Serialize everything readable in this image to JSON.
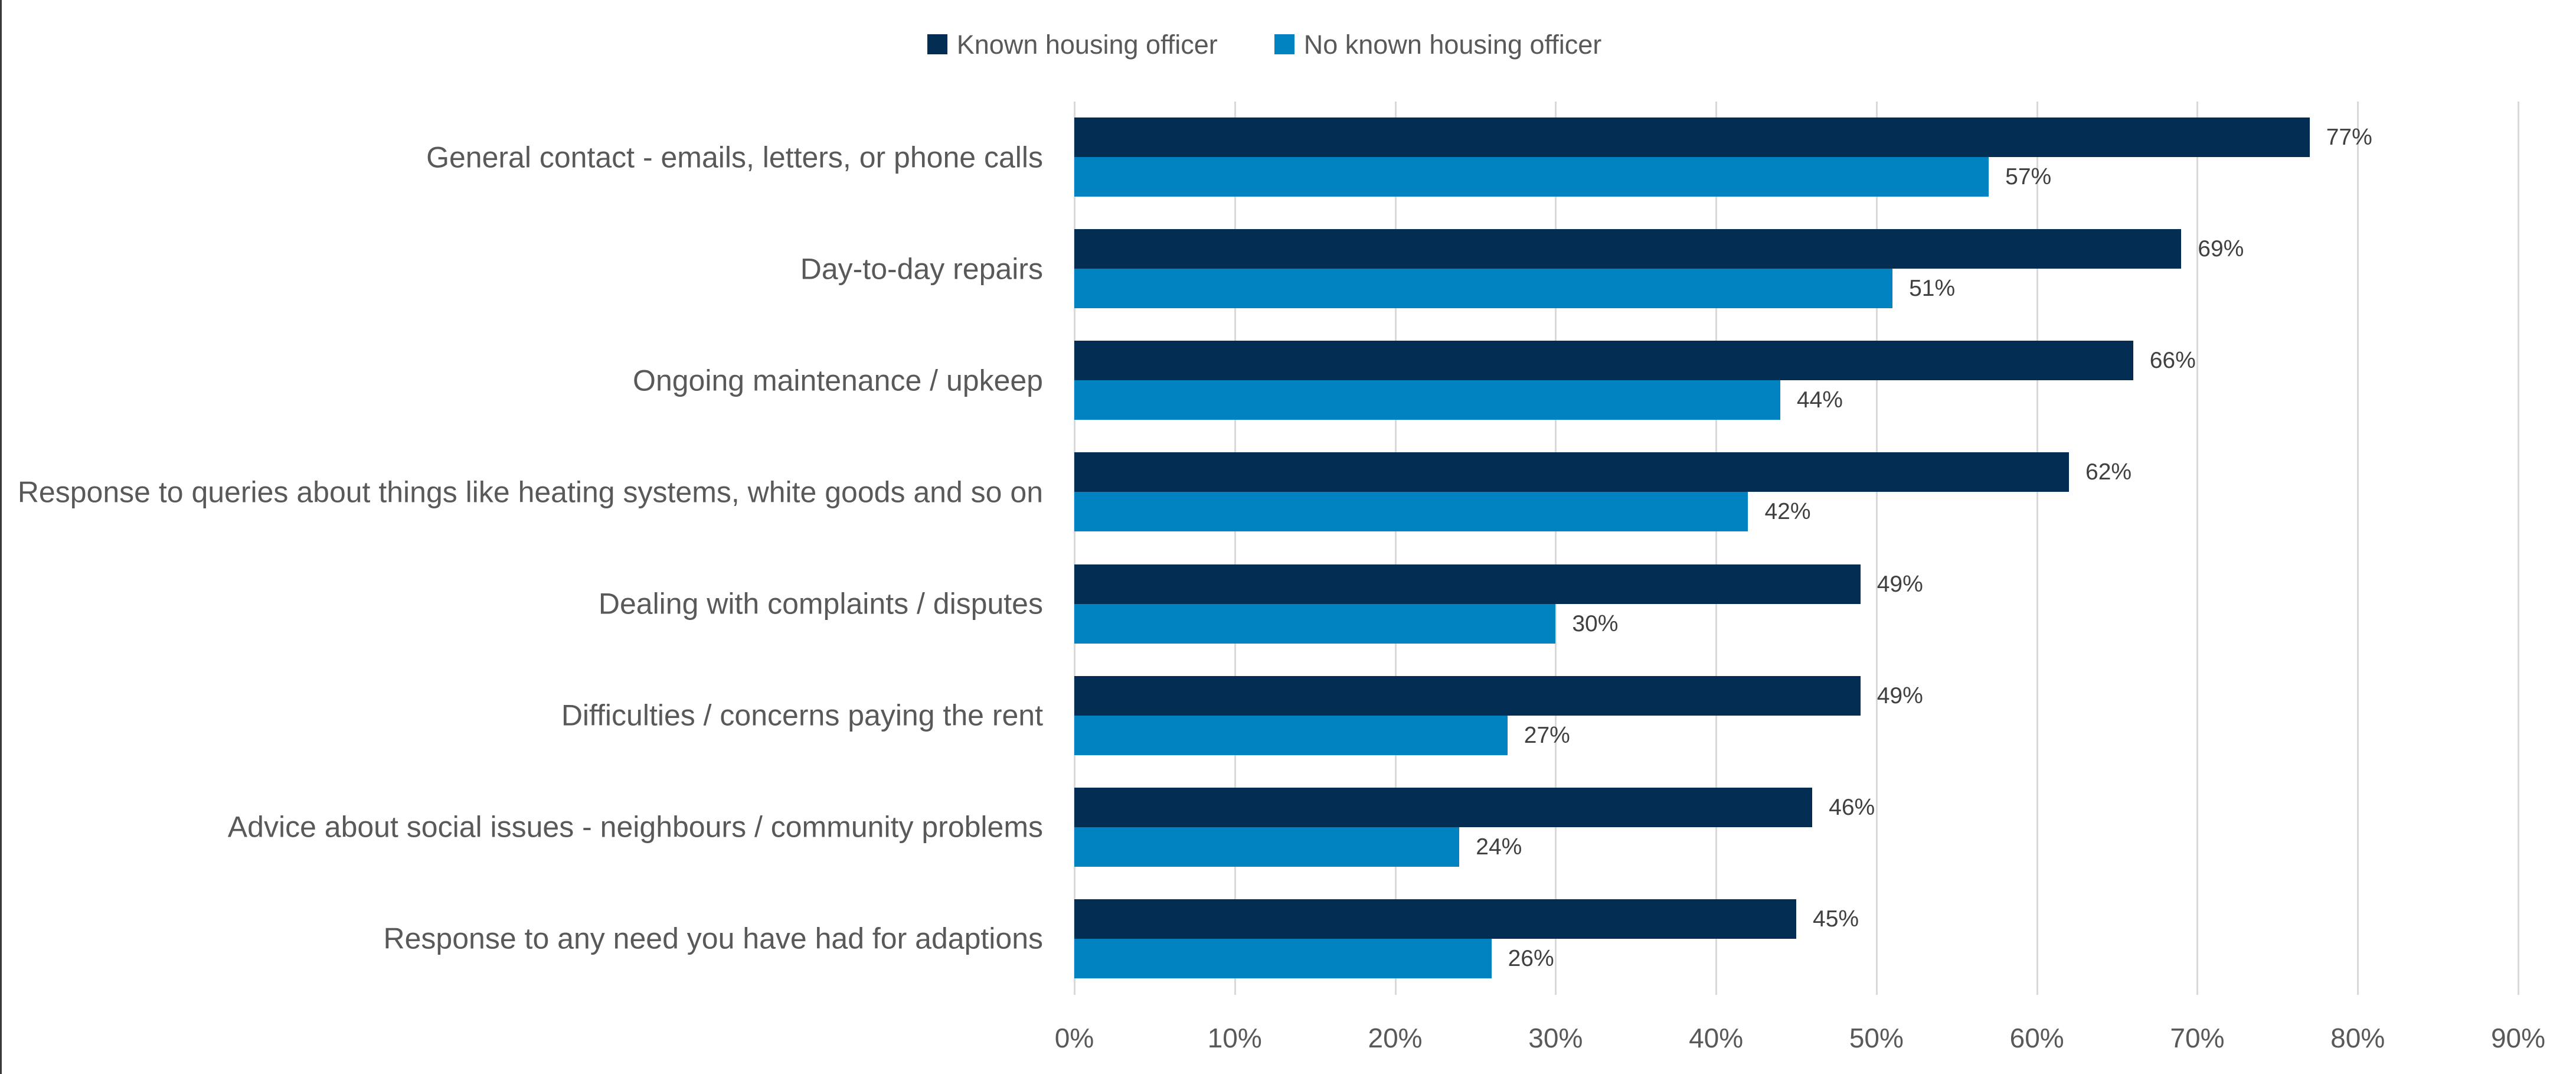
{
  "chart_data": {
    "type": "bar",
    "orientation": "horizontal",
    "title": "",
    "categories": [
      "General contact - emails, letters, or phone calls",
      "Day-to-day repairs",
      "Ongoing maintenance / upkeep",
      "Response to queries about things like heating systems, white goods and so on",
      "Dealing with complaints / disputes",
      "Difficulties / concerns paying the rent",
      "Advice about social issues - neighbours / community problems",
      "Response to any need you have had for adaptions"
    ],
    "series": [
      {
        "name": "Known housing officer",
        "color": "#032D52",
        "values": [
          77,
          69,
          66,
          62,
          49,
          49,
          46,
          45
        ]
      },
      {
        "name": "No known housing officer",
        "color": "#0283C1",
        "values": [
          57,
          51,
          44,
          42,
          30,
          27,
          24,
          26
        ]
      }
    ],
    "data_labels": [
      [
        "77%",
        "69%",
        "66%",
        "62%",
        "49%",
        "49%",
        "46%",
        "45%"
      ],
      [
        "57%",
        "51%",
        "44%",
        "42%",
        "30%",
        "27%",
        "24%",
        "26%"
      ]
    ],
    "x_tick_labels": [
      "0%",
      "10%",
      "20%",
      "30%",
      "40%",
      "50%",
      "60%",
      "70%",
      "80%",
      "90%"
    ],
    "xlim": [
      0,
      90
    ],
    "grid": true,
    "legend_position": "top",
    "colors": {
      "grid": "#D9D9D9",
      "axis_text": "#595959",
      "category_text": "#595959",
      "data_label_text": "#404040",
      "border_line": "#3A3A3A",
      "background": "#FFFFFF"
    }
  }
}
